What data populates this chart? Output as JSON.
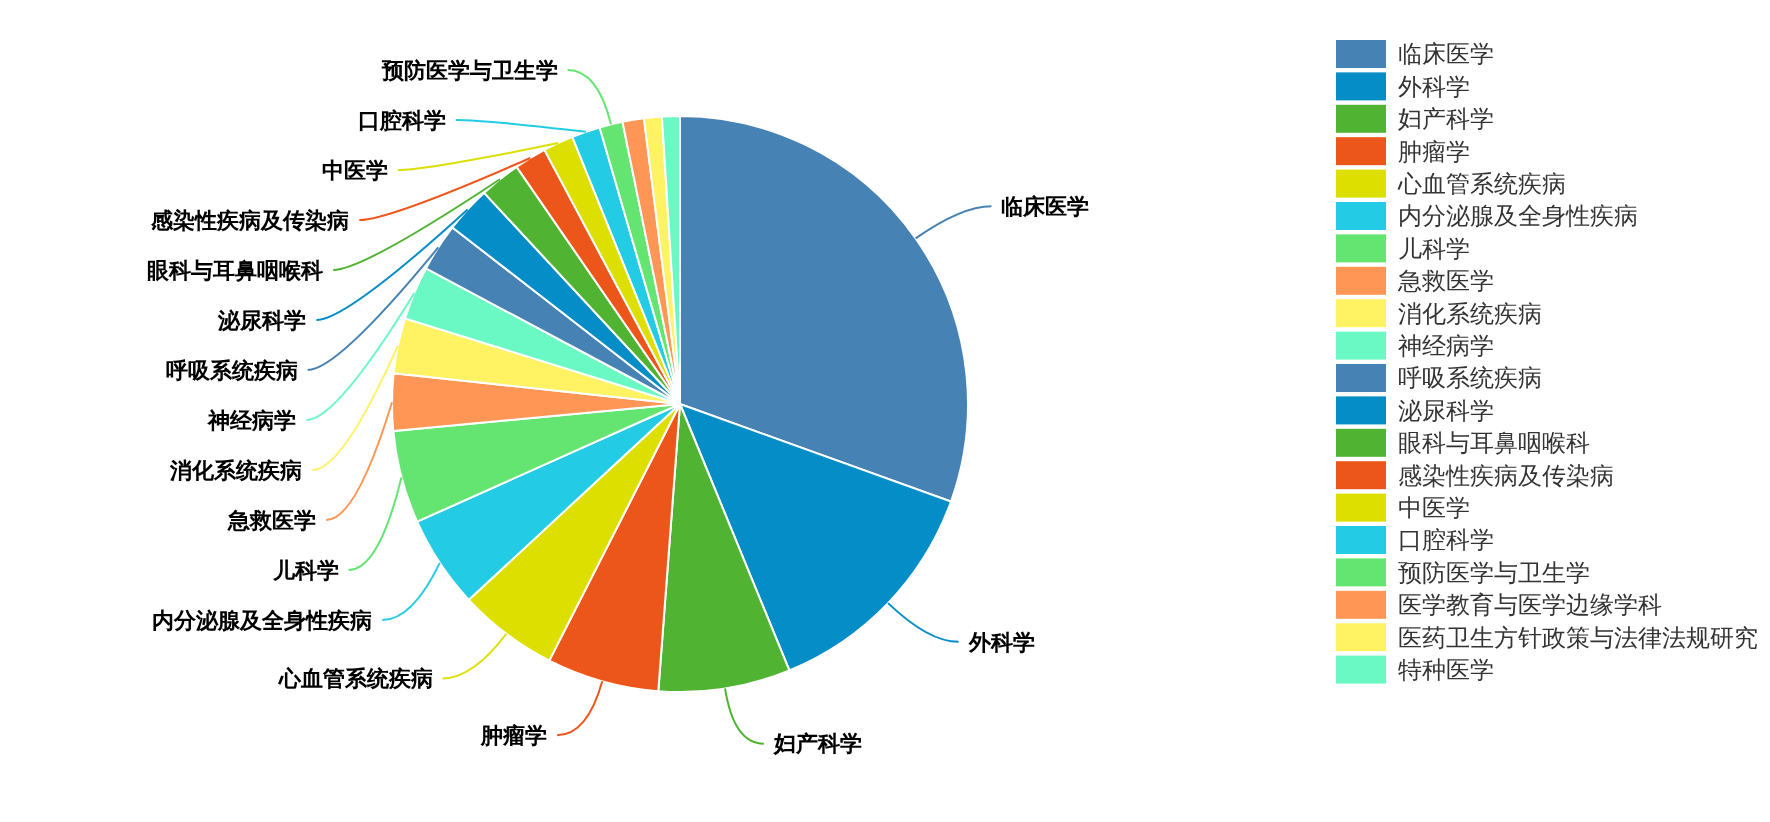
{
  "chart_data": {
    "type": "pie",
    "categories": [
      "临床医学",
      "外科学",
      "妇产科学",
      "肿瘤学",
      "心血管系统疾病",
      "内分泌腺及全身性疾病",
      "儿科学",
      "急救医学",
      "消化系统疾病",
      "神经病学",
      "呼吸系统疾病",
      "泌尿科学",
      "眼科与耳鼻咽喉科",
      "感染性疾病及传染病",
      "中医学",
      "口腔科学",
      "预防医学与卫生学",
      "医学教育与医学边缘学科",
      "医药卫生方针政策与法律法规研究",
      "特种医学"
    ],
    "values": [
      30.5,
      13.3,
      7.4,
      6.3,
      5.6,
      5.2,
      5.2,
      3.2,
      3.1,
      3.0,
      2.7,
      2.6,
      2.3,
      1.8,
      1.7,
      1.6,
      1.3,
      1.2,
      1.0,
      1.0
    ],
    "colors": [
      "#4682b4",
      "#058dc7",
      "#50b432",
      "#ed561b",
      "#dddf00",
      "#24cbe5",
      "#64e572",
      "#ff9655",
      "#fff263",
      "#6af9c4",
      "#4682b4",
      "#058dc7",
      "#50b432",
      "#ed561b",
      "#dddf00",
      "#24cbe5",
      "#64e572",
      "#ff9655",
      "#fff263",
      "#6af9c4"
    ],
    "legend": "top right"
  }
}
